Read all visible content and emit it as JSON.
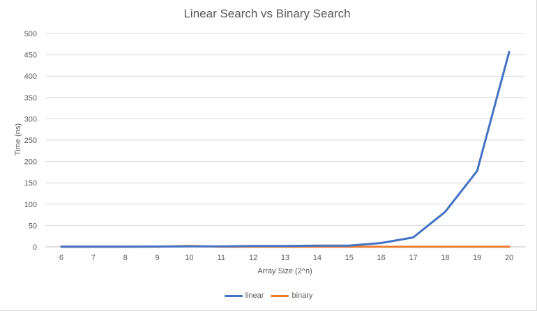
{
  "chart_data": {
    "type": "line",
    "title": "Linear Search vs Binary Search",
    "xlabel": "Array Size (2^n)",
    "ylabel": "Time (ns)",
    "x": [
      6,
      7,
      8,
      9,
      10,
      11,
      12,
      13,
      14,
      15,
      16,
      17,
      18,
      19,
      20
    ],
    "ylim": [
      0,
      500
    ],
    "yticks": [
      0,
      50,
      100,
      150,
      200,
      250,
      300,
      350,
      400,
      450,
      500
    ],
    "grid": true,
    "legend": "bottom",
    "series": [
      {
        "name": "linear",
        "color": "#4472C4",
        "values": [
          0.3,
          0.4,
          0.5,
          0.7,
          1,
          1,
          2,
          2,
          3,
          3,
          9,
          22,
          82,
          178,
          457
        ]
      },
      {
        "name": "binary",
        "color": "#ED7D31",
        "values": [
          0.2,
          0.2,
          0.2,
          0.3,
          2,
          0.2,
          0.2,
          0.2,
          0.2,
          0.2,
          0.2,
          0.2,
          0.2,
          0.2,
          0.2
        ]
      }
    ]
  }
}
